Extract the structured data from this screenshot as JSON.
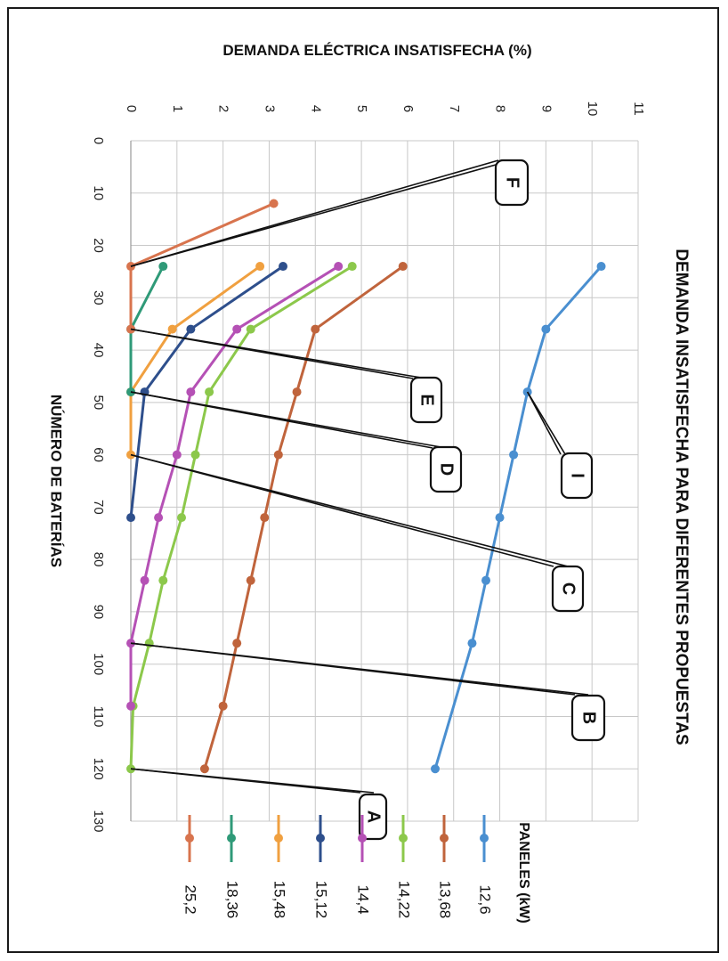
{
  "chart_data": {
    "type": "line",
    "orientation": "rotated-90-clockwise",
    "title": "DEMANDA INSATISFECHA PARA DIFERENTES PROPUESTAS",
    "xlabel": "NÚMERO DE BATERÍAS",
    "ylabel": "DEMANDA ELÉCTRICA INSATISFECHA (%)",
    "xticks": [
      "0",
      "10",
      "20",
      "30",
      "40",
      "50",
      "60",
      "70",
      "80",
      "90",
      "100",
      "110",
      "120",
      "130"
    ],
    "yticks": [
      "0",
      "1",
      "2",
      "3",
      "4",
      "5",
      "6",
      "7",
      "8",
      "9",
      "10",
      "11"
    ],
    "xlim": [
      0,
      130
    ],
    "ylim": [
      0,
      11
    ],
    "grid": true,
    "legend_title": "PANELES  (kW)",
    "legend_position": "bottom-right",
    "series": [
      {
        "name": "12,6",
        "color": "#4a8fd0",
        "x": [
          24,
          36,
          48,
          60,
          72,
          84,
          96,
          120
        ],
        "y": [
          10.2,
          9.0,
          8.6,
          8.3,
          8.0,
          7.7,
          7.4,
          6.6
        ]
      },
      {
        "name": "13,68",
        "color": "#c0643c",
        "x": [
          24,
          36,
          48,
          60,
          72,
          84,
          96,
          108,
          120
        ],
        "y": [
          5.9,
          4.0,
          3.6,
          3.2,
          2.9,
          2.6,
          2.3,
          2.0,
          1.6
        ]
      },
      {
        "name": "14,22",
        "color": "#8cc84b",
        "x": [
          24,
          36,
          48,
          60,
          72,
          84,
          96,
          108,
          120
        ],
        "y": [
          4.8,
          2.6,
          1.7,
          1.4,
          1.1,
          0.7,
          0.4,
          0.05,
          0.0
        ]
      },
      {
        "name": "14,4",
        "color": "#b551b5",
        "x": [
          24,
          36,
          48,
          60,
          72,
          84,
          96,
          108
        ],
        "y": [
          4.5,
          2.3,
          1.3,
          1.0,
          0.6,
          0.3,
          0.0,
          0.0
        ]
      },
      {
        "name": "15,12",
        "color": "#2e4f8c",
        "x": [
          24,
          36,
          48,
          72
        ],
        "y": [
          3.3,
          1.3,
          0.3,
          0.0
        ]
      },
      {
        "name": "15,48",
        "color": "#f0a040",
        "x": [
          24,
          36,
          48,
          60
        ],
        "y": [
          2.8,
          0.9,
          0.0,
          0.0
        ]
      },
      {
        "name": "18,36",
        "color": "#2f9a78",
        "x": [
          24,
          36,
          48
        ],
        "y": [
          0.7,
          0.0,
          0.0
        ]
      },
      {
        "name": "25,2",
        "color": "#d8744e",
        "x": [
          12,
          24,
          36
        ],
        "y": [
          3.1,
          0.0,
          0.0
        ]
      }
    ],
    "annotations": [
      {
        "label": "A",
        "x": 120,
        "y": 0
      },
      {
        "label": "B",
        "x": 96,
        "y": 0
      },
      {
        "label": "C",
        "x": 60,
        "y": 0
      },
      {
        "label": "D",
        "x": 48,
        "y": 0
      },
      {
        "label": "E",
        "x": 36,
        "y": 0
      },
      {
        "label": "F",
        "x": 24,
        "y": 0
      },
      {
        "label": "I",
        "x": 48,
        "y": 8.6
      }
    ]
  }
}
